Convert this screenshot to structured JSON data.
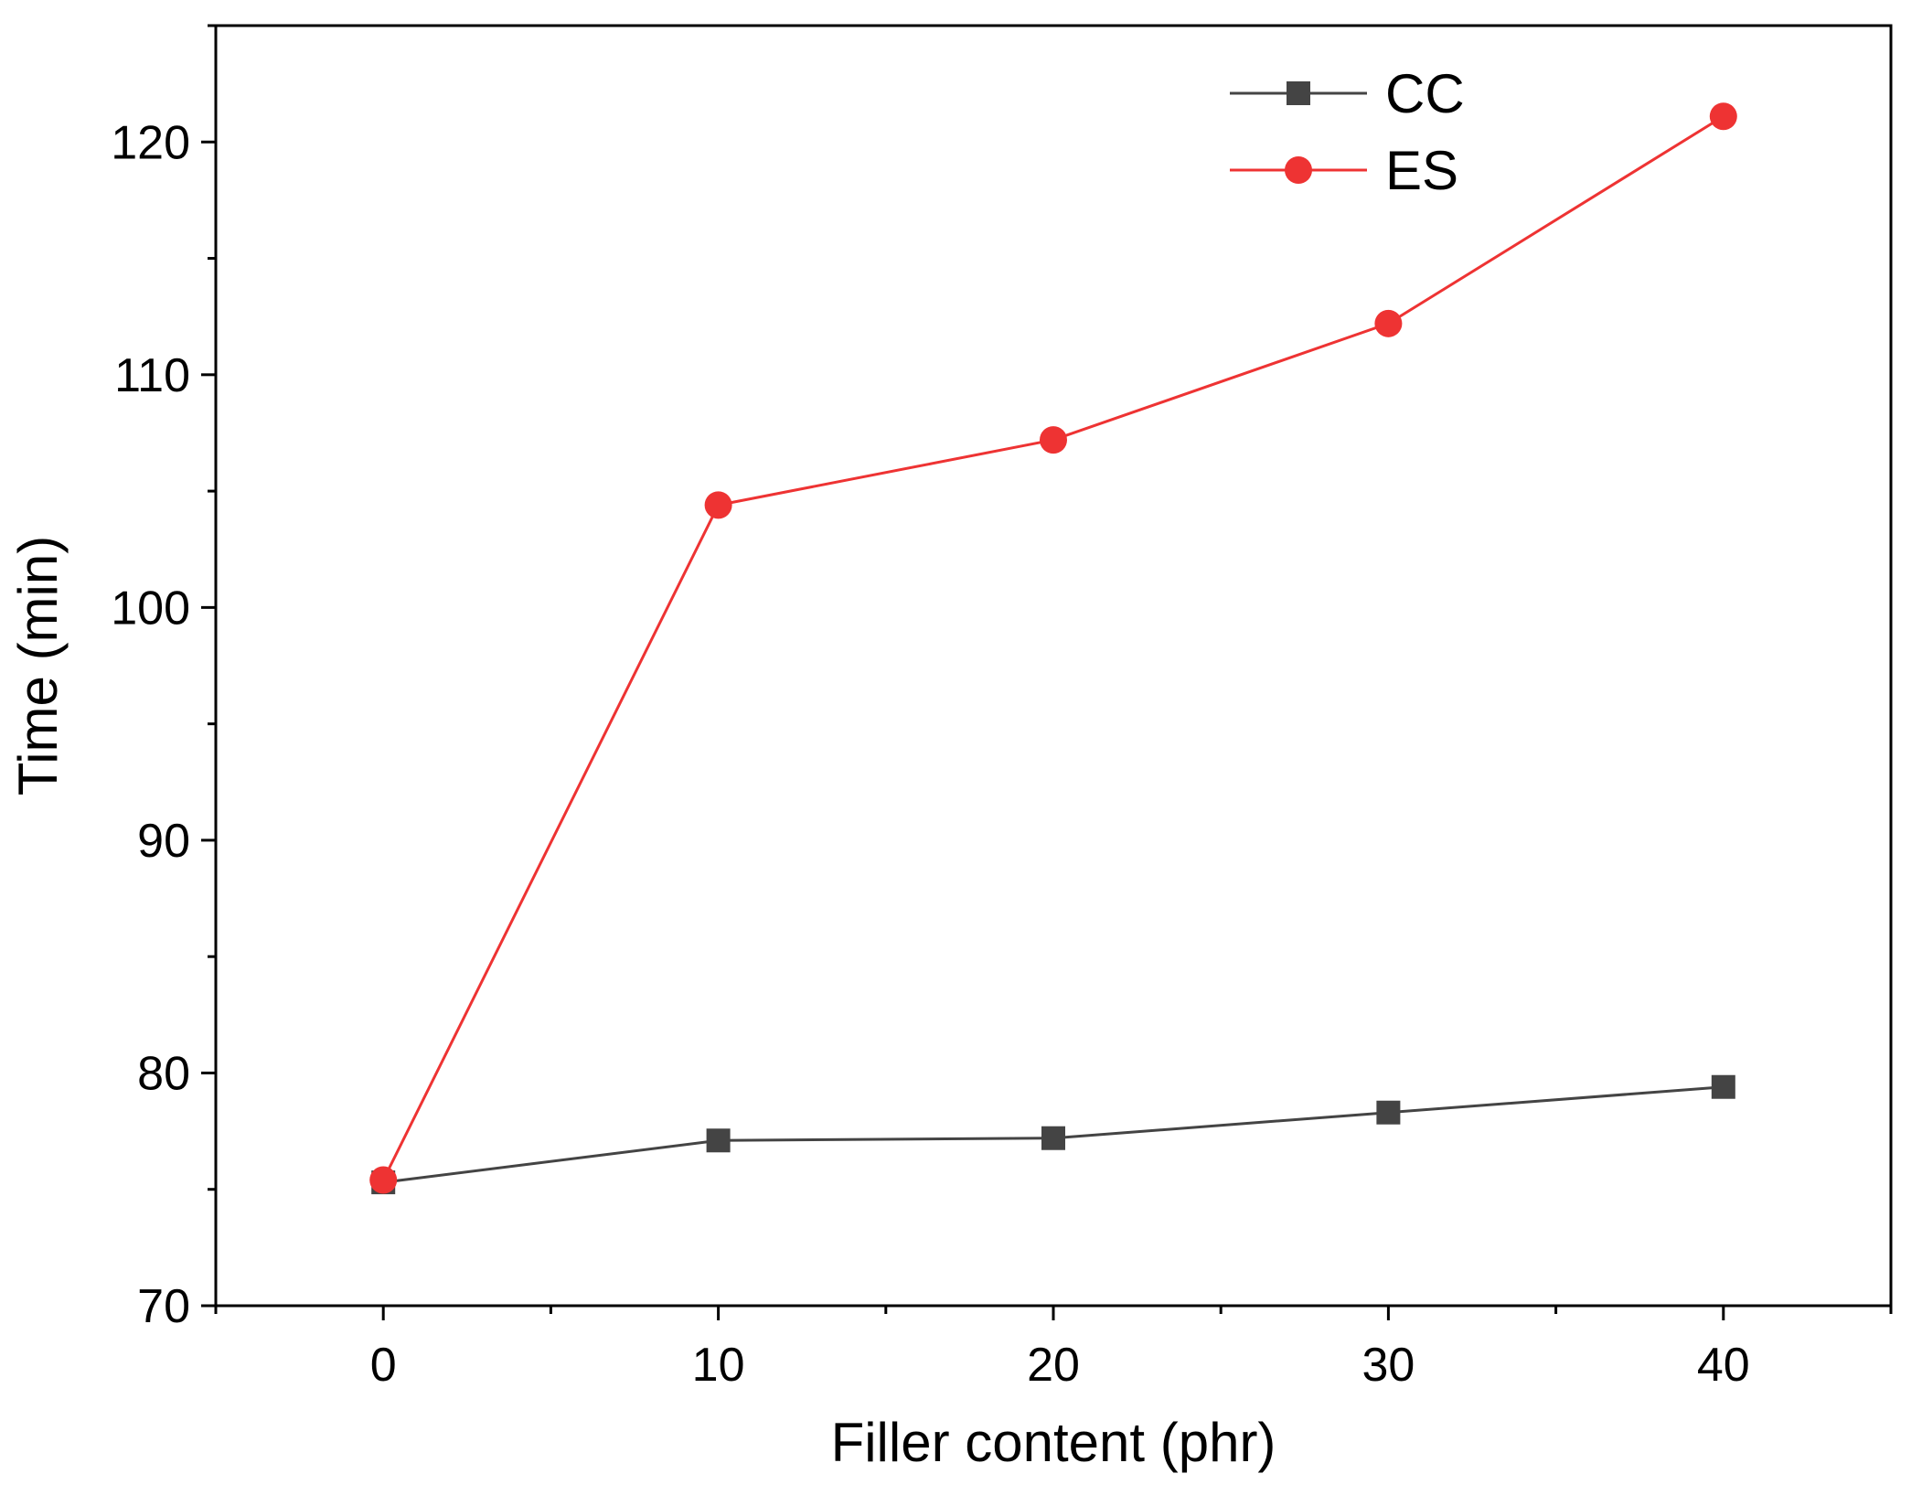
{
  "chart_data": {
    "type": "line",
    "title": "",
    "xlabel": "Filler content (phr)",
    "ylabel": "Time (min)",
    "xlim": [
      -5,
      45
    ],
    "ylim": [
      70,
      125
    ],
    "x": [
      0,
      10,
      20,
      30,
      40
    ],
    "x_ticks": [
      "0",
      "10",
      "20",
      "30",
      "40"
    ],
    "y_ticks": [
      "70",
      "80",
      "90",
      "100",
      "110",
      "120"
    ],
    "grid": false,
    "legend_position": "top-right",
    "series": [
      {
        "name": "CC",
        "marker": "square",
        "color": "#444444",
        "values": [
          75.3,
          77.1,
          77.2,
          78.3,
          79.4
        ]
      },
      {
        "name": "ES",
        "marker": "circle",
        "color": "#ee3333",
        "values": [
          75.4,
          104.4,
          107.2,
          112.2,
          121.1
        ]
      }
    ]
  }
}
